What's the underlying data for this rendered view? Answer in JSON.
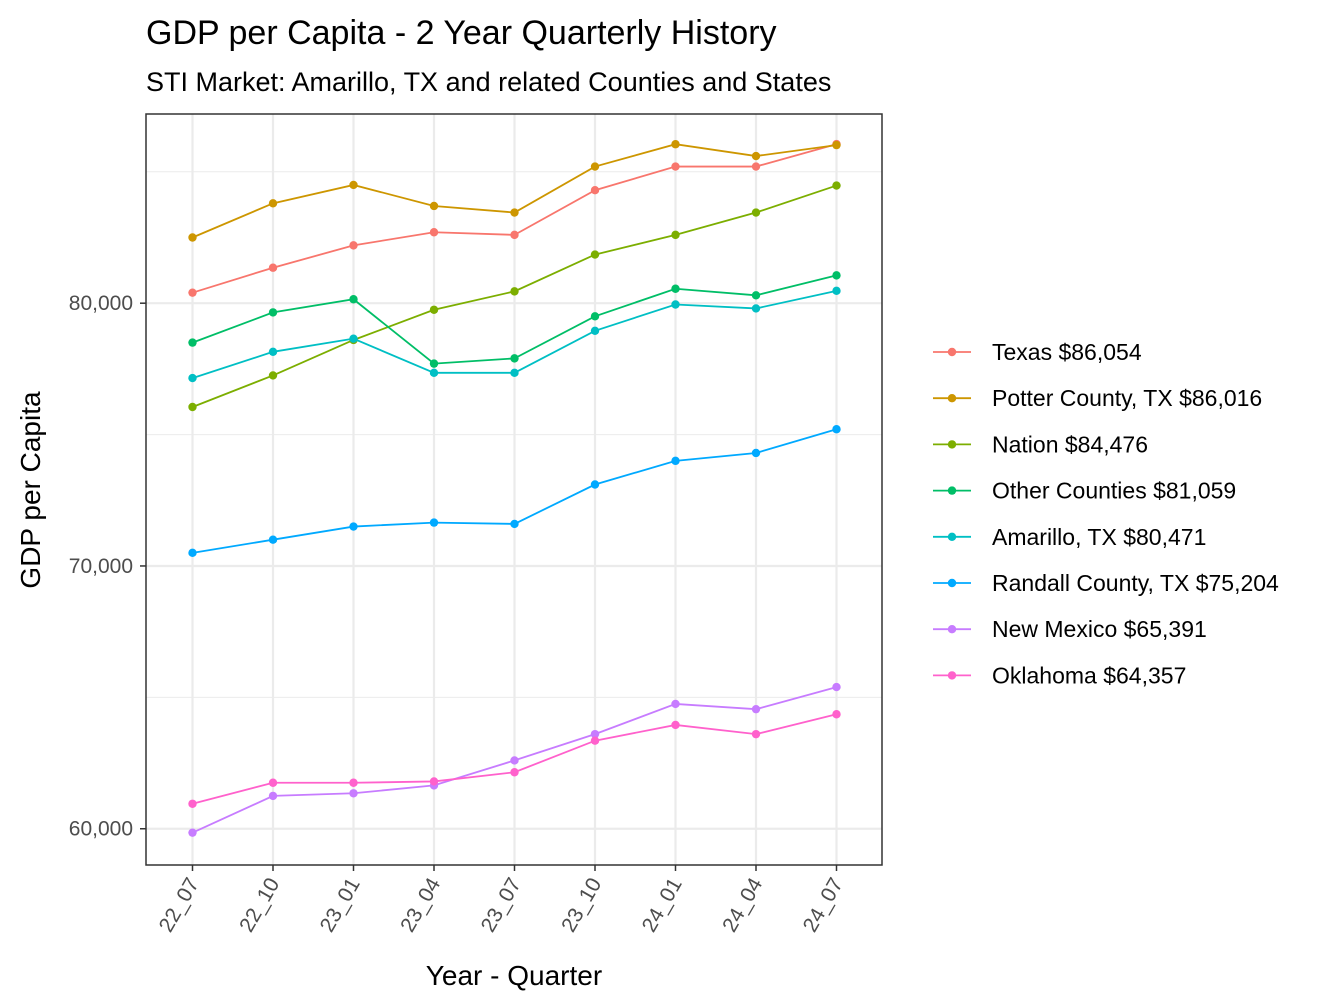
{
  "chart_data": {
    "type": "line",
    "title": "GDP per Capita - 2 Year Quarterly History",
    "subtitle": "STI Market: Amarillo, TX and related Counties and States",
    "xlabel": "Year - Quarter",
    "ylabel": "GDP per Capita",
    "categories": [
      "22_07",
      "22_10",
      "23_01",
      "23_04",
      "23_07",
      "23_10",
      "24_01",
      "24_04",
      "24_07"
    ],
    "y_ticks": [
      60000,
      70000,
      80000
    ],
    "y_tick_labels": [
      "60,000",
      "70,000",
      "80,000"
    ],
    "ylim": [
      58620,
      87200
    ],
    "grid": true,
    "legend_position": "right",
    "series": [
      {
        "name": "Texas $86,054",
        "color": "#F8766D",
        "values": [
          80400,
          81350,
          82200,
          82700,
          82600,
          84300,
          85200,
          85200,
          86054
        ]
      },
      {
        "name": "Potter County, TX $86,016",
        "color": "#CD9600",
        "values": [
          82500,
          83800,
          84500,
          83700,
          83450,
          85200,
          86050,
          85600,
          86016
        ]
      },
      {
        "name": "Nation $84,476",
        "color": "#7CAE00",
        "values": [
          76050,
          77250,
          78600,
          79750,
          80450,
          81850,
          82600,
          83450,
          84476
        ]
      },
      {
        "name": "Other Counties $81,059",
        "color": "#00BE67",
        "values": [
          78500,
          79650,
          80150,
          77700,
          77900,
          79500,
          80550,
          80300,
          81059
        ]
      },
      {
        "name": "Amarillo, TX $80,471",
        "color": "#00BFC4",
        "values": [
          77150,
          78150,
          78650,
          77350,
          77350,
          78950,
          79950,
          79800,
          80471
        ]
      },
      {
        "name": "Randall County, TX $75,204",
        "color": "#00A9FF",
        "values": [
          70500,
          71000,
          71500,
          71650,
          71600,
          73100,
          74000,
          74300,
          75204
        ]
      },
      {
        "name": "New Mexico $65,391",
        "color": "#C77CFF",
        "values": [
          59850,
          61250,
          61350,
          61650,
          62600,
          63600,
          64750,
          64550,
          65391
        ]
      },
      {
        "name": "Oklahoma $64,357",
        "color": "#FF61CC",
        "values": [
          60950,
          61750,
          61750,
          61800,
          62150,
          63350,
          63950,
          63600,
          64357
        ]
      }
    ]
  }
}
